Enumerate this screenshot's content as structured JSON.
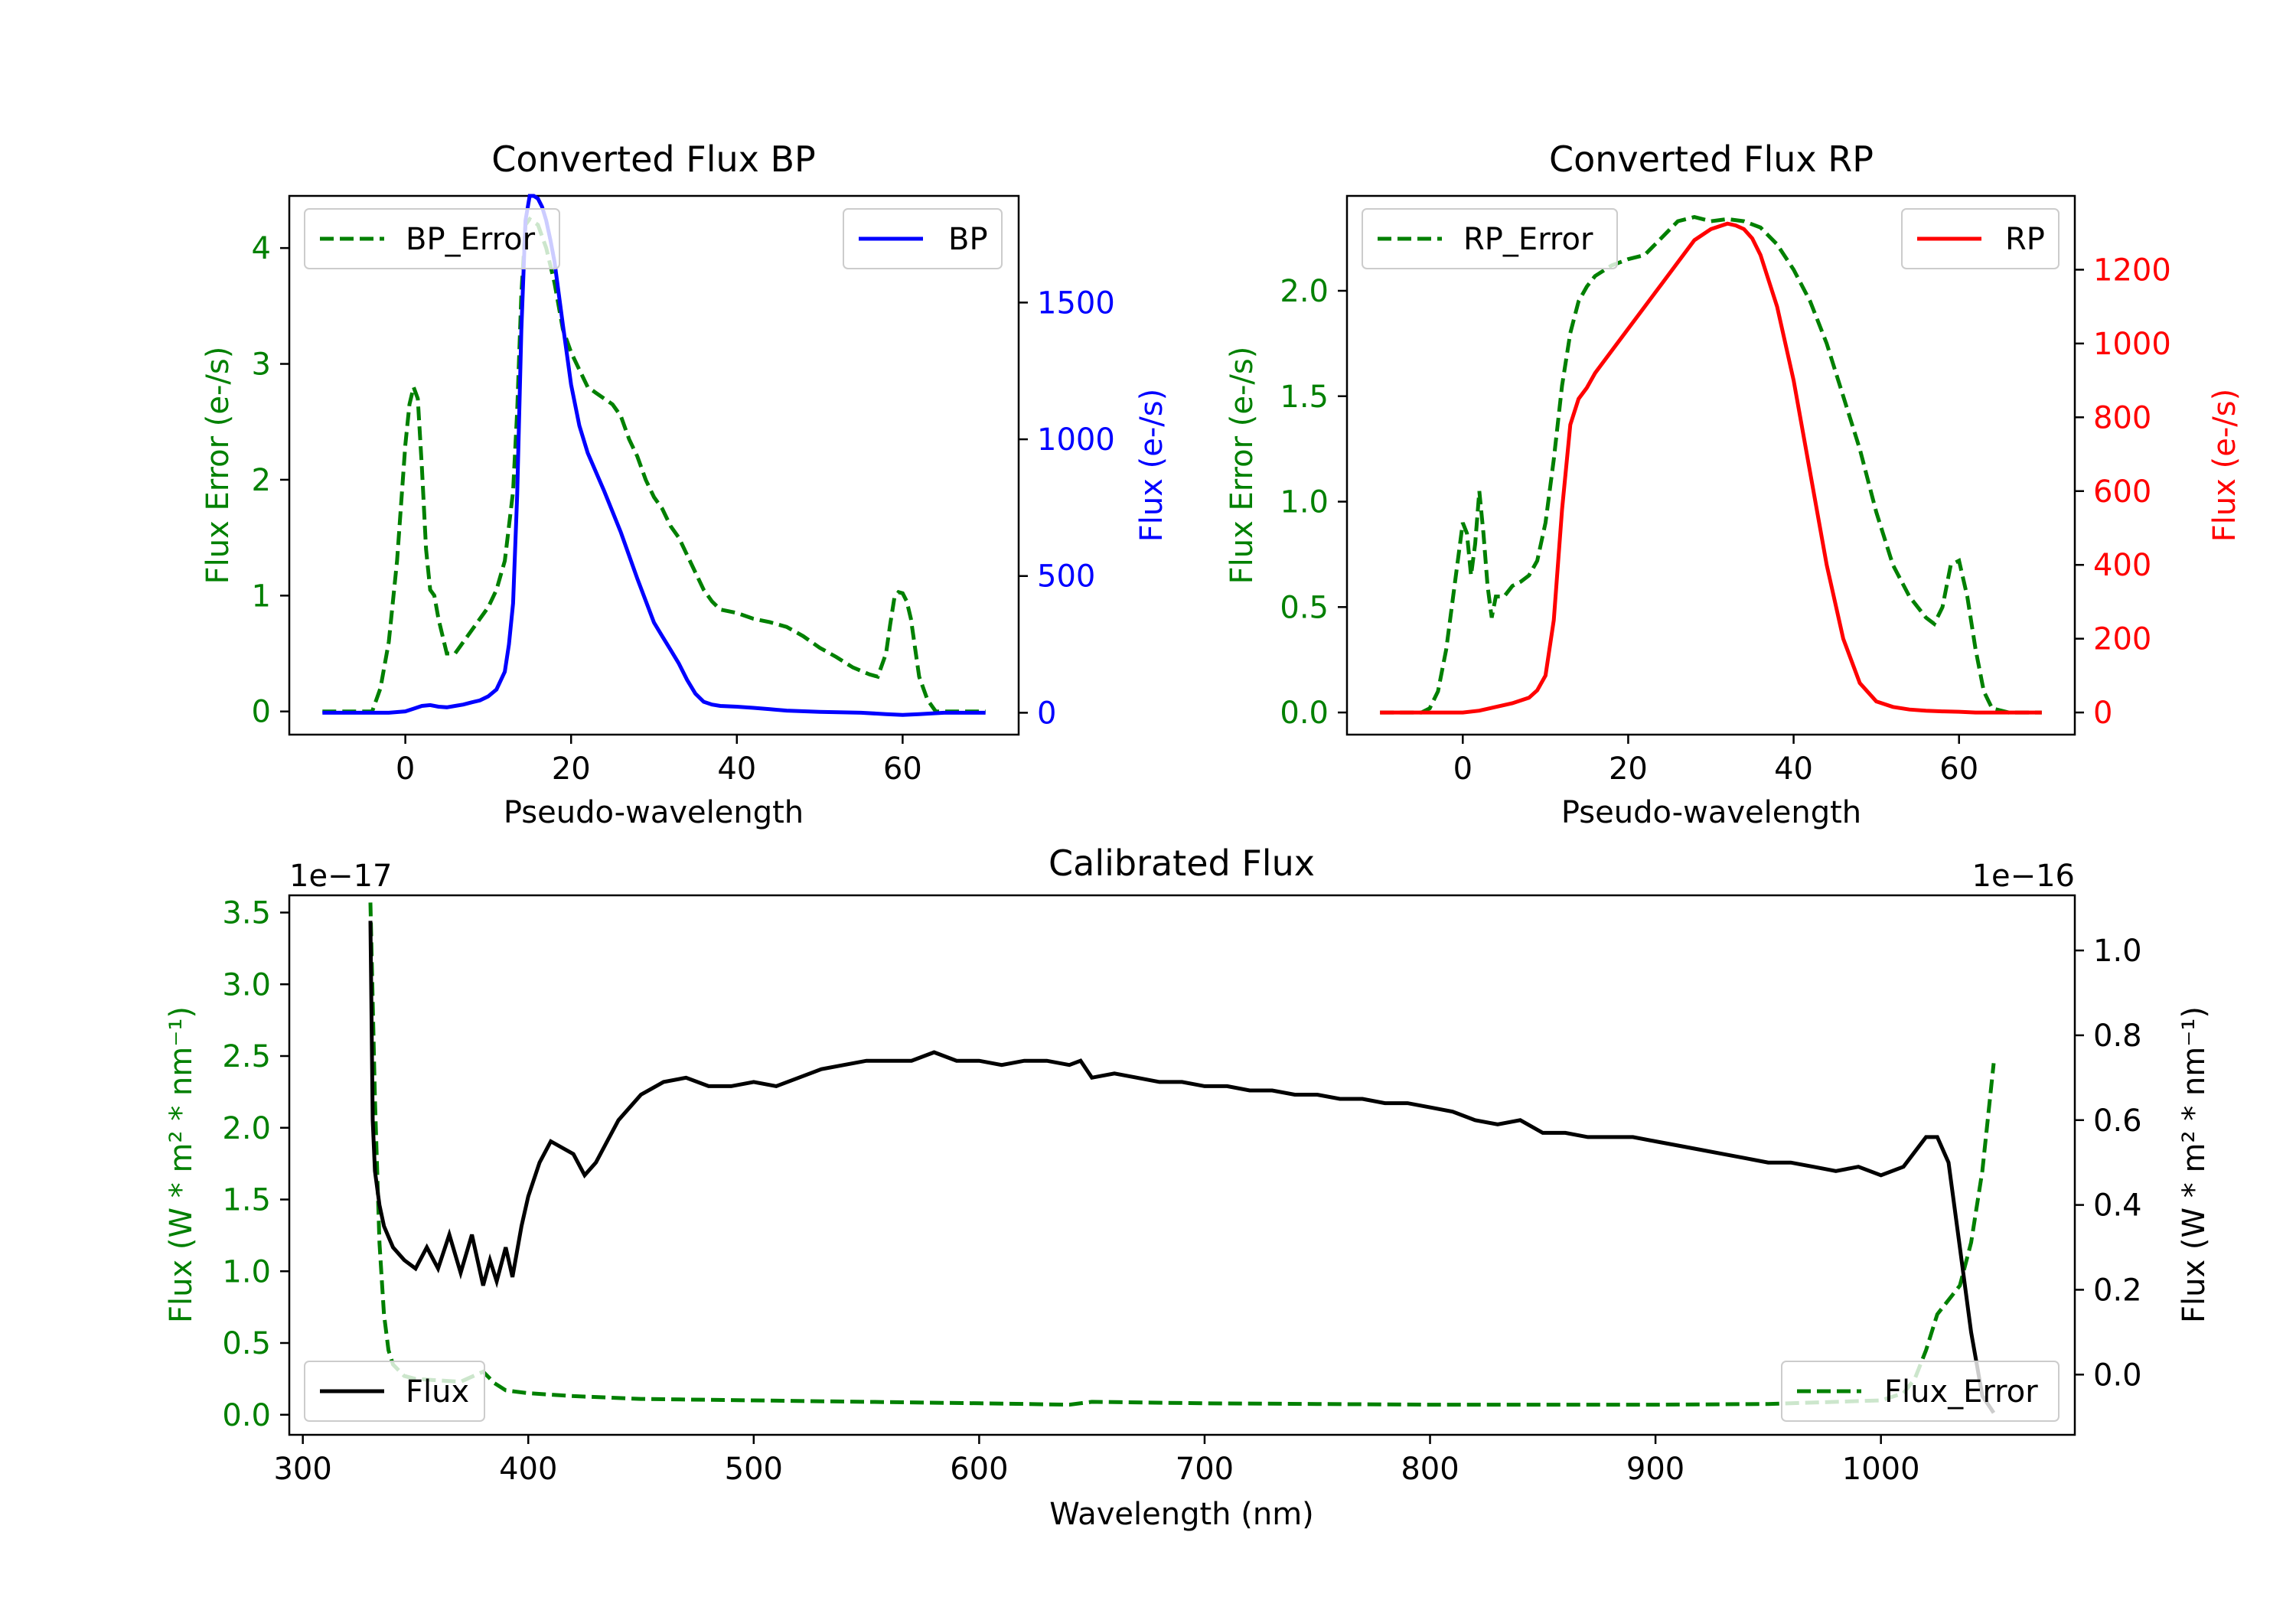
{
  "figure": {
    "background": "#ffffff"
  },
  "colors": {
    "green": "#008000",
    "blue": "#0000ff",
    "red": "#ff0000",
    "black": "#000000"
  },
  "chart_data": [
    {
      "id": "bp",
      "type": "line",
      "title": "Converted Flux BP",
      "xlabel": "Pseudo-wavelength",
      "xlim": [
        -14,
        74
      ],
      "xticks": [
        0,
        20,
        40,
        60
      ],
      "left_axis": {
        "label": "Flux Error (e-/s)",
        "color": "#008000",
        "ylim": [
          -0.2,
          4.45
        ],
        "ticks": [
          0,
          1,
          2,
          3,
          4
        ],
        "tick_labels": [
          "0",
          "1",
          "2",
          "3",
          "4"
        ]
      },
      "right_axis": {
        "label": "Flux (e-/s)",
        "color": "#0000ff",
        "ylim": [
          -80,
          1890
        ],
        "ticks": [
          0,
          500,
          1000,
          1500
        ],
        "tick_labels": [
          "0",
          "500",
          "1000",
          "1500"
        ]
      },
      "series": [
        {
          "name": "BP_Error",
          "axis": "left",
          "color": "#008000",
          "dash": true,
          "legend": "top-left",
          "x": [
            -10,
            -4,
            -3,
            -2,
            -1,
            0,
            0.5,
            1,
            1.5,
            2,
            2.5,
            3,
            3.5,
            4,
            5,
            6,
            7,
            8,
            9,
            10,
            11,
            12,
            13,
            13.5,
            14,
            14.5,
            15,
            16,
            17,
            18,
            19,
            20,
            21,
            22,
            23,
            24,
            25,
            26,
            27,
            28,
            29,
            30,
            31,
            32,
            33,
            34,
            35,
            36,
            37,
            38,
            40,
            42,
            44,
            46,
            48,
            50,
            52,
            54,
            55,
            56,
            57,
            58,
            58.5,
            59,
            59.5,
            60,
            60.5,
            61,
            61.5,
            62,
            63,
            64,
            66,
            70
          ],
          "values": [
            0,
            0,
            0.2,
            0.6,
            1.3,
            2.3,
            2.65,
            2.8,
            2.7,
            2.1,
            1.4,
            1.05,
            1.0,
            0.8,
            0.5,
            0.5,
            0.6,
            0.7,
            0.8,
            0.9,
            1.05,
            1.3,
            1.9,
            2.6,
            3.6,
            4.2,
            4.25,
            4.2,
            4.0,
            3.7,
            3.3,
            3.1,
            2.95,
            2.8,
            2.75,
            2.7,
            2.65,
            2.55,
            2.35,
            2.2,
            2.0,
            1.85,
            1.75,
            1.6,
            1.5,
            1.35,
            1.2,
            1.05,
            0.95,
            0.88,
            0.85,
            0.8,
            0.77,
            0.73,
            0.65,
            0.55,
            0.47,
            0.38,
            0.35,
            0.32,
            0.3,
            0.5,
            0.75,
            0.98,
            1.03,
            1.02,
            0.95,
            0.8,
            0.55,
            0.3,
            0.1,
            0,
            0,
            0
          ]
        },
        {
          "name": "BP",
          "axis": "right",
          "color": "#0000ff",
          "dash": false,
          "legend": "top-right",
          "x": [
            -10,
            -5,
            -2,
            0,
            1,
            2,
            3,
            4,
            5,
            6,
            7,
            8,
            9,
            10,
            11,
            12,
            12.5,
            13,
            13.5,
            14,
            14.5,
            15,
            15.5,
            16,
            16.5,
            17,
            17.5,
            18,
            19,
            20,
            21,
            22,
            24,
            26,
            28,
            30,
            31,
            32,
            33,
            34,
            35,
            36,
            37,
            38,
            40,
            42,
            44,
            46,
            50,
            55,
            58,
            60,
            62,
            65,
            70
          ],
          "values": [
            0,
            0,
            0,
            5,
            15,
            25,
            28,
            22,
            20,
            25,
            30,
            38,
            45,
            60,
            85,
            150,
            250,
            400,
            800,
            1400,
            1800,
            1890,
            1890,
            1880,
            1850,
            1800,
            1730,
            1650,
            1420,
            1200,
            1050,
            950,
            810,
            660,
            490,
            330,
            280,
            230,
            180,
            120,
            70,
            40,
            30,
            25,
            22,
            18,
            13,
            8,
            3,
            0,
            -5,
            -8,
            -5,
            0,
            0
          ]
        }
      ]
    },
    {
      "id": "rp",
      "type": "line",
      "title": "Converted Flux RP",
      "xlabel": "Pseudo-wavelength",
      "xlim": [
        -14,
        74
      ],
      "xticks": [
        0,
        20,
        40,
        60
      ],
      "left_axis": {
        "label": "Flux Error (e-/s)",
        "color": "#008000",
        "ylim": [
          -0.105,
          2.45
        ],
        "ticks": [
          0,
          0.5,
          1.0,
          1.5,
          2.0
        ],
        "tick_labels": [
          "0.0",
          "0.5",
          "1.0",
          "1.5",
          "2.0"
        ]
      },
      "right_axis": {
        "label": "Flux (e-/s)",
        "color": "#ff0000",
        "ylim": [
          -60,
          1400
        ],
        "ticks": [
          0,
          200,
          400,
          600,
          800,
          1000,
          1200
        ],
        "tick_labels": [
          "0",
          "200",
          "400",
          "600",
          "800",
          "1000",
          "1200"
        ]
      },
      "series": [
        {
          "name": "RP_Error",
          "axis": "left",
          "color": "#008000",
          "dash": true,
          "legend": "top-left",
          "x": [
            -10,
            -5,
            -4,
            -3,
            -2,
            -1,
            0,
            0.5,
            1,
            1.5,
            2,
            2.5,
            3,
            3.5,
            4,
            5,
            6,
            7,
            8,
            9,
            10,
            11,
            12,
            13,
            14,
            15,
            16,
            18,
            20,
            22,
            24,
            26,
            28,
            30,
            32,
            34,
            36,
            38,
            40,
            42,
            44,
            46,
            48,
            50,
            52,
            54,
            56,
            57,
            58,
            58.5,
            59,
            60,
            61,
            62,
            63,
            64,
            66,
            70
          ],
          "values": [
            0,
            0,
            0.02,
            0.1,
            0.3,
            0.6,
            0.9,
            0.85,
            0.65,
            0.8,
            1.05,
            0.85,
            0.6,
            0.45,
            0.55,
            0.55,
            0.6,
            0.62,
            0.65,
            0.72,
            0.9,
            1.2,
            1.55,
            1.8,
            1.95,
            2.02,
            2.07,
            2.12,
            2.15,
            2.17,
            2.25,
            2.33,
            2.35,
            2.33,
            2.34,
            2.33,
            2.3,
            2.22,
            2.1,
            1.95,
            1.75,
            1.5,
            1.25,
            0.95,
            0.7,
            0.55,
            0.45,
            0.42,
            0.5,
            0.6,
            0.7,
            0.72,
            0.55,
            0.3,
            0.1,
            0.02,
            0,
            0
          ]
        },
        {
          "name": "RP",
          "axis": "right",
          "color": "#ff0000",
          "dash": false,
          "legend": "top-right",
          "x": [
            -10,
            -5,
            0,
            2,
            4,
            6,
            8,
            9,
            10,
            11,
            12,
            13,
            14,
            15,
            16,
            18,
            20,
            22,
            24,
            26,
            28,
            30,
            32,
            33,
            34,
            35,
            36,
            38,
            40,
            42,
            44,
            46,
            48,
            50,
            52,
            54,
            56,
            58,
            60,
            62,
            65,
            70
          ],
          "values": [
            0,
            0,
            0,
            5,
            15,
            25,
            40,
            60,
            100,
            250,
            550,
            780,
            850,
            880,
            920,
            980,
            1040,
            1100,
            1160,
            1220,
            1280,
            1310,
            1325,
            1320,
            1310,
            1285,
            1240,
            1100,
            900,
            650,
            400,
            200,
            80,
            30,
            15,
            8,
            5,
            3,
            2,
            0,
            0,
            0
          ]
        }
      ]
    },
    {
      "id": "calibrated",
      "type": "line",
      "title": "Calibrated Flux",
      "xlabel": "Wavelength (nm)",
      "xlim": [
        294,
        1086
      ],
      "xticks": [
        300,
        400,
        500,
        600,
        700,
        800,
        900,
        1000
      ],
      "left_axis": {
        "label": "Flux (W * m² * nm⁻¹)",
        "color": "#008000",
        "offset_text": "1e−17",
        "ylim": [
          -0.14,
          3.62
        ],
        "ticks": [
          0,
          0.5,
          1.0,
          1.5,
          2.0,
          2.5,
          3.0,
          3.5
        ],
        "tick_labels": [
          "0.0",
          "0.5",
          "1.0",
          "1.5",
          "2.0",
          "2.5",
          "3.0",
          "3.5"
        ]
      },
      "right_axis": {
        "label": "Flux (W * m² * nm⁻¹)",
        "color": "#000000",
        "offset_text": "1e−16",
        "ylim": [
          -0.142,
          1.13
        ],
        "ticks": [
          0,
          0.2,
          0.4,
          0.6,
          0.8,
          1.0
        ],
        "tick_labels": [
          "0.0",
          "0.2",
          "0.4",
          "0.6",
          "0.8",
          "1.0"
        ]
      },
      "series": [
        {
          "name": "Flux_Error",
          "axis": "left",
          "color": "#008000",
          "dash": true,
          "legend": "bottom-right",
          "x": [
            330,
            332,
            334,
            336,
            338,
            340,
            345,
            350,
            360,
            370,
            380,
            385,
            390,
            400,
            420,
            450,
            500,
            550,
            600,
            640,
            650,
            700,
            750,
            800,
            850,
            900,
            950,
            1000,
            1010,
            1015,
            1020,
            1025,
            1030,
            1035,
            1040,
            1045,
            1050
          ],
          "values": [
            3.57,
            2.2,
            1.2,
            0.7,
            0.45,
            0.35,
            0.27,
            0.25,
            0.24,
            0.23,
            0.3,
            0.22,
            0.17,
            0.15,
            0.13,
            0.11,
            0.1,
            0.09,
            0.08,
            0.07,
            0.09,
            0.08,
            0.075,
            0.07,
            0.07,
            0.07,
            0.075,
            0.1,
            0.15,
            0.25,
            0.45,
            0.7,
            0.8,
            0.9,
            1.2,
            1.7,
            2.45
          ]
        },
        {
          "name": "Flux",
          "axis": "right",
          "color": "#000000",
          "dash": false,
          "legend": "bottom-left",
          "x": [
            330,
            331,
            332,
            334,
            336,
            340,
            345,
            350,
            355,
            360,
            365,
            370,
            375,
            380,
            383,
            386,
            390,
            393,
            397,
            400,
            405,
            410,
            420,
            425,
            430,
            435,
            440,
            450,
            460,
            470,
            480,
            490,
            500,
            510,
            520,
            530,
            540,
            550,
            560,
            570,
            580,
            590,
            600,
            610,
            620,
            630,
            640,
            645,
            650,
            660,
            670,
            680,
            690,
            700,
            710,
            720,
            730,
            740,
            750,
            760,
            770,
            780,
            790,
            800,
            810,
            820,
            830,
            840,
            850,
            860,
            870,
            880,
            890,
            900,
            910,
            920,
            930,
            940,
            950,
            960,
            970,
            980,
            990,
            1000,
            1010,
            1020,
            1025,
            1030,
            1035,
            1040,
            1045,
            1050
          ],
          "values": [
            1.07,
            0.6,
            0.48,
            0.4,
            0.35,
            0.3,
            0.27,
            0.25,
            0.3,
            0.25,
            0.33,
            0.24,
            0.33,
            0.21,
            0.27,
            0.22,
            0.3,
            0.23,
            0.35,
            0.42,
            0.5,
            0.55,
            0.52,
            0.47,
            0.5,
            0.55,
            0.6,
            0.66,
            0.69,
            0.7,
            0.68,
            0.68,
            0.69,
            0.68,
            0.7,
            0.72,
            0.73,
            0.74,
            0.74,
            0.74,
            0.76,
            0.74,
            0.74,
            0.73,
            0.74,
            0.74,
            0.73,
            0.74,
            0.7,
            0.71,
            0.7,
            0.69,
            0.69,
            0.68,
            0.68,
            0.67,
            0.67,
            0.66,
            0.66,
            0.65,
            0.65,
            0.64,
            0.64,
            0.63,
            0.62,
            0.6,
            0.59,
            0.6,
            0.57,
            0.57,
            0.56,
            0.56,
            0.56,
            0.55,
            0.54,
            0.53,
            0.52,
            0.51,
            0.5,
            0.5,
            0.49,
            0.48,
            0.49,
            0.47,
            0.49,
            0.56,
            0.56,
            0.5,
            0.3,
            0.1,
            -0.05,
            -0.09
          ]
        }
      ]
    }
  ]
}
